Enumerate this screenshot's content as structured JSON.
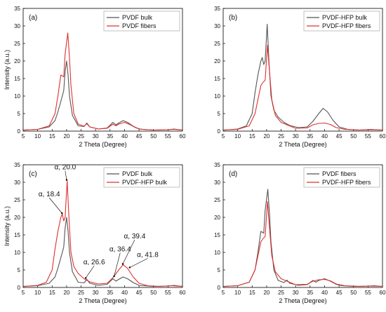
{
  "chart_data": [
    {
      "type": "line",
      "panel_label": "(a)",
      "xlabel": "2 Theta (Degree)",
      "ylabel": "Intensity (a.u.)",
      "xlim": [
        5,
        60
      ],
      "ylim": [
        0,
        35
      ],
      "xticks": [
        5,
        10,
        15,
        20,
        25,
        30,
        35,
        40,
        45,
        50,
        55,
        60
      ],
      "yticks": [
        0,
        5,
        10,
        15,
        20,
        25,
        30,
        35
      ],
      "grid": false,
      "legend_position": "top-right",
      "series": [
        {
          "name": "PVDF bulk",
          "color": "#555555",
          "points": [
            [
              5,
              0.3
            ],
            [
              10,
              0.5
            ],
            [
              14,
              1.2
            ],
            [
              16,
              3
            ],
            [
              17,
              5.5
            ],
            [
              18,
              8.5
            ],
            [
              19,
              11.5
            ],
            [
              19.5,
              17
            ],
            [
              20,
              20
            ],
            [
              20.5,
              16
            ],
            [
              21,
              10
            ],
            [
              22,
              4.5
            ],
            [
              24,
              1.5
            ],
            [
              26,
              1.3
            ],
            [
              27,
              2.3
            ],
            [
              28,
              1.2
            ],
            [
              31,
              0.6
            ],
            [
              34,
              0.9
            ],
            [
              36,
              2.5
            ],
            [
              37,
              1.8
            ],
            [
              38,
              2.3
            ],
            [
              39.5,
              3
            ],
            [
              41,
              2.5
            ],
            [
              43,
              1.4
            ],
            [
              45,
              0.6
            ],
            [
              50,
              0.3
            ],
            [
              55,
              0.4
            ],
            [
              57,
              0.6
            ],
            [
              60,
              0.3
            ]
          ]
        },
        {
          "name": "PVDF fibers",
          "color": "#e03030",
          "points": [
            [
              5,
              0.3
            ],
            [
              10,
              0.5
            ],
            [
              14,
              1.5
            ],
            [
              16,
              5
            ],
            [
              17,
              10
            ],
            [
              18,
              16
            ],
            [
              19,
              15.5
            ],
            [
              19.5,
              22
            ],
            [
              20.4,
              28
            ],
            [
              21,
              21
            ],
            [
              21.5,
              13
            ],
            [
              22.5,
              5
            ],
            [
              24,
              2
            ],
            [
              26,
              1.4
            ],
            [
              27,
              2.1
            ],
            [
              28,
              1.2
            ],
            [
              31,
              0.6
            ],
            [
              34,
              0.8
            ],
            [
              36,
              2
            ],
            [
              37,
              1.5
            ],
            [
              38,
              2
            ],
            [
              40,
              2.5
            ],
            [
              42,
              1.8
            ],
            [
              44,
              0.9
            ],
            [
              46,
              0.5
            ],
            [
              50,
              0.3
            ],
            [
              55,
              0.4
            ],
            [
              57,
              0.5
            ],
            [
              60,
              0.3
            ]
          ]
        }
      ]
    },
    {
      "type": "line",
      "panel_label": "(b)",
      "xlabel": "2 Theta (Degree)",
      "ylabel": "",
      "xlim": [
        5,
        60
      ],
      "ylim": [
        0,
        35
      ],
      "xticks": [
        5,
        10,
        15,
        20,
        25,
        30,
        35,
        40,
        45,
        50,
        55,
        60
      ],
      "yticks": [
        0,
        5,
        10,
        15,
        20,
        25,
        30,
        35
      ],
      "grid": false,
      "legend_position": "top-right",
      "series": [
        {
          "name": "PVDF-HFP bulk",
          "color": "#555555",
          "points": [
            [
              5,
              0.3
            ],
            [
              10,
              0.6
            ],
            [
              13,
              1.5
            ],
            [
              15,
              5
            ],
            [
              16,
              11
            ],
            [
              17,
              16
            ],
            [
              18,
              20
            ],
            [
              18.5,
              21
            ],
            [
              19,
              19
            ],
            [
              19.5,
              20
            ],
            [
              20.2,
              30.5
            ],
            [
              20.8,
              20
            ],
            [
              21.5,
              10
            ],
            [
              22.5,
              6
            ],
            [
              24,
              4
            ],
            [
              26,
              2.5
            ],
            [
              28,
              1.6
            ],
            [
              31,
              1
            ],
            [
              34,
              1.2
            ],
            [
              36,
              2.8
            ],
            [
              38,
              5
            ],
            [
              39.5,
              6.5
            ],
            [
              41,
              5.5
            ],
            [
              43,
              3
            ],
            [
              45,
              1.2
            ],
            [
              48,
              0.5
            ],
            [
              52,
              0.3
            ],
            [
              56,
              0.5
            ],
            [
              60,
              0.3
            ]
          ]
        },
        {
          "name": "PVDF-HFP fibers",
          "color": "#e03030",
          "points": [
            [
              5,
              0.3
            ],
            [
              10,
              0.5
            ],
            [
              14,
              1.5
            ],
            [
              16,
              5
            ],
            [
              17,
              9
            ],
            [
              18,
              13
            ],
            [
              18.8,
              14
            ],
            [
              19.5,
              14.5
            ],
            [
              20.3,
              24.5
            ],
            [
              21,
              17
            ],
            [
              21.8,
              9
            ],
            [
              23,
              4.5
            ],
            [
              25,
              2.5
            ],
            [
              27,
              1.8
            ],
            [
              30,
              0.8
            ],
            [
              34,
              0.9
            ],
            [
              36,
              1.8
            ],
            [
              38,
              2.2
            ],
            [
              40,
              2.3
            ],
            [
              42,
              1.9
            ],
            [
              44,
              1
            ],
            [
              47,
              0.5
            ],
            [
              52,
              0.3
            ],
            [
              56,
              0.4
            ],
            [
              60,
              0.3
            ]
          ]
        }
      ]
    },
    {
      "type": "line",
      "panel_label": "(c)",
      "xlabel": "2 Theta (Degree)",
      "ylabel": "Intensity (a.u.)",
      "xlim": [
        5,
        60
      ],
      "ylim": [
        0,
        35
      ],
      "xticks": [
        5,
        10,
        15,
        20,
        25,
        30,
        35,
        40,
        45,
        50,
        55,
        60
      ],
      "yticks": [
        0,
        5,
        10,
        15,
        20,
        25,
        30,
        35
      ],
      "grid": false,
      "legend_position": "top-right",
      "series": [
        {
          "name": "PVDF bulk",
          "color": "#555555",
          "points": [
            [
              5,
              0.3
            ],
            [
              10,
              0.5
            ],
            [
              14,
              1.2
            ],
            [
              16,
              3
            ],
            [
              17,
              5.5
            ],
            [
              18,
              8.5
            ],
            [
              19,
              11.5
            ],
            [
              19.5,
              17
            ],
            [
              20,
              20
            ],
            [
              20.5,
              16
            ],
            [
              21,
              10
            ],
            [
              22,
              4.5
            ],
            [
              24,
              1.5
            ],
            [
              26,
              1.3
            ],
            [
              27,
              2.3
            ],
            [
              28,
              1.2
            ],
            [
              31,
              0.6
            ],
            [
              34,
              0.9
            ],
            [
              36,
              2.5
            ],
            [
              37,
              1.8
            ],
            [
              38,
              2.3
            ],
            [
              39.5,
              3
            ],
            [
              41,
              2.5
            ],
            [
              43,
              1.4
            ],
            [
              45,
              0.6
            ],
            [
              50,
              0.3
            ],
            [
              55,
              0.4
            ],
            [
              57,
              0.6
            ],
            [
              60,
              0.3
            ]
          ]
        },
        {
          "name": "PVDF-HFP bulk",
          "color": "#e03030",
          "points": [
            [
              5,
              0.3
            ],
            [
              10,
              0.6
            ],
            [
              13,
              1.5
            ],
            [
              15,
              5
            ],
            [
              16,
              11
            ],
            [
              17,
              16
            ],
            [
              18,
              20
            ],
            [
              18.5,
              21
            ],
            [
              19,
              19
            ],
            [
              19.5,
              20
            ],
            [
              20.2,
              30.5
            ],
            [
              20.8,
              20
            ],
            [
              21.5,
              10
            ],
            [
              22.5,
              6
            ],
            [
              24,
              4
            ],
            [
              26,
              2.5
            ],
            [
              28,
              1.6
            ],
            [
              31,
              1
            ],
            [
              34,
              1.2
            ],
            [
              36,
              2.8
            ],
            [
              38,
              5
            ],
            [
              39.5,
              6.5
            ],
            [
              41,
              5.5
            ],
            [
              43,
              3
            ],
            [
              45,
              1.2
            ],
            [
              48,
              0.5
            ],
            [
              52,
              0.3
            ],
            [
              56,
              0.5
            ],
            [
              60,
              0.3
            ]
          ]
        }
      ],
      "annotations": [
        {
          "text": "α, 20.0",
          "x": 20.0,
          "y": 30.5,
          "label_x": 19.5,
          "label_y": 33.7
        },
        {
          "text": "α, 18.4",
          "x": 18.4,
          "y": 21,
          "label_x": 14,
          "label_y": 26
        },
        {
          "text": "α, 26.6",
          "x": 26.6,
          "y": 2.5,
          "label_x": 29.5,
          "label_y": 6.6
        },
        {
          "text": "α, 36.4",
          "x": 36.4,
          "y": 3,
          "label_x": 38.5,
          "label_y": 10.3
        },
        {
          "text": "α, 39.4",
          "x": 39.4,
          "y": 6.5,
          "label_x": 43.5,
          "label_y": 14
        },
        {
          "text": "α, 41.8",
          "x": 41.8,
          "y": 5.5,
          "label_x": 48,
          "label_y": 8.7
        }
      ]
    },
    {
      "type": "line",
      "panel_label": "(d)",
      "xlabel": "2 Theta (Degree)",
      "ylabel": "",
      "xlim": [
        5,
        60
      ],
      "ylim": [
        0,
        35
      ],
      "xticks": [
        5,
        10,
        15,
        20,
        25,
        30,
        35,
        40,
        45,
        50,
        55,
        60
      ],
      "yticks": [
        0,
        5,
        10,
        15,
        20,
        25,
        30,
        35
      ],
      "grid": false,
      "legend_position": "top-right",
      "series": [
        {
          "name": "PVDF fibers",
          "color": "#555555",
          "points": [
            [
              5,
              0.3
            ],
            [
              10,
              0.5
            ],
            [
              14,
              1.5
            ],
            [
              16,
              5
            ],
            [
              17,
              10
            ],
            [
              18,
              16
            ],
            [
              19,
              15.5
            ],
            [
              19.5,
              22
            ],
            [
              20.4,
              28
            ],
            [
              21,
              21
            ],
            [
              21.5,
              13
            ],
            [
              22.5,
              5
            ],
            [
              24,
              2
            ],
            [
              26,
              1.4
            ],
            [
              27,
              2.1
            ],
            [
              28,
              1.2
            ],
            [
              31,
              0.6
            ],
            [
              34,
              0.8
            ],
            [
              36,
              2
            ],
            [
              37,
              1.5
            ],
            [
              38,
              2
            ],
            [
              40,
              2.5
            ],
            [
              42,
              1.8
            ],
            [
              44,
              0.9
            ],
            [
              46,
              0.5
            ],
            [
              50,
              0.3
            ],
            [
              55,
              0.4
            ],
            [
              57,
              0.5
            ],
            [
              60,
              0.3
            ]
          ]
        },
        {
          "name": "PVDF-HFP fibers",
          "color": "#e03030",
          "points": [
            [
              5,
              0.3
            ],
            [
              10,
              0.5
            ],
            [
              14,
              1.5
            ],
            [
              16,
              5
            ],
            [
              17,
              9
            ],
            [
              18,
              13
            ],
            [
              18.8,
              14
            ],
            [
              19.5,
              14.5
            ],
            [
              20.3,
              24.5
            ],
            [
              21,
              17
            ],
            [
              21.8,
              9
            ],
            [
              23,
              4.5
            ],
            [
              25,
              2.5
            ],
            [
              27,
              1.8
            ],
            [
              30,
              0.8
            ],
            [
              34,
              0.9
            ],
            [
              36,
              1.8
            ],
            [
              38,
              2.2
            ],
            [
              40,
              2.3
            ],
            [
              42,
              1.9
            ],
            [
              44,
              1
            ],
            [
              47,
              0.5
            ],
            [
              52,
              0.3
            ],
            [
              56,
              0.4
            ],
            [
              60,
              0.3
            ]
          ]
        }
      ]
    }
  ]
}
